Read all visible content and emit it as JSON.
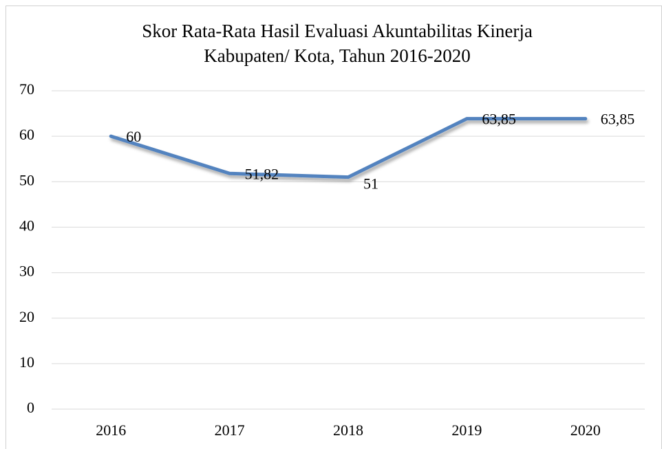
{
  "chart_data": {
    "type": "line",
    "title": [
      "Skor Rata-Rata Hasil Evaluasi Akuntabilitas Kinerja",
      "Kabupaten/ Kota, Tahun 2016-2020"
    ],
    "categories": [
      "2016",
      "2017",
      "2018",
      "2019",
      "2020"
    ],
    "values": [
      60,
      51.82,
      51,
      63.85,
      63.85
    ],
    "value_labels": [
      "60",
      "51,82",
      "51",
      "63,85",
      "63,85"
    ],
    "color": "#5383bf",
    "ylim": [
      0,
      70
    ],
    "yticks": [
      0,
      10,
      20,
      30,
      40,
      50,
      60,
      70
    ],
    "grid": true
  }
}
